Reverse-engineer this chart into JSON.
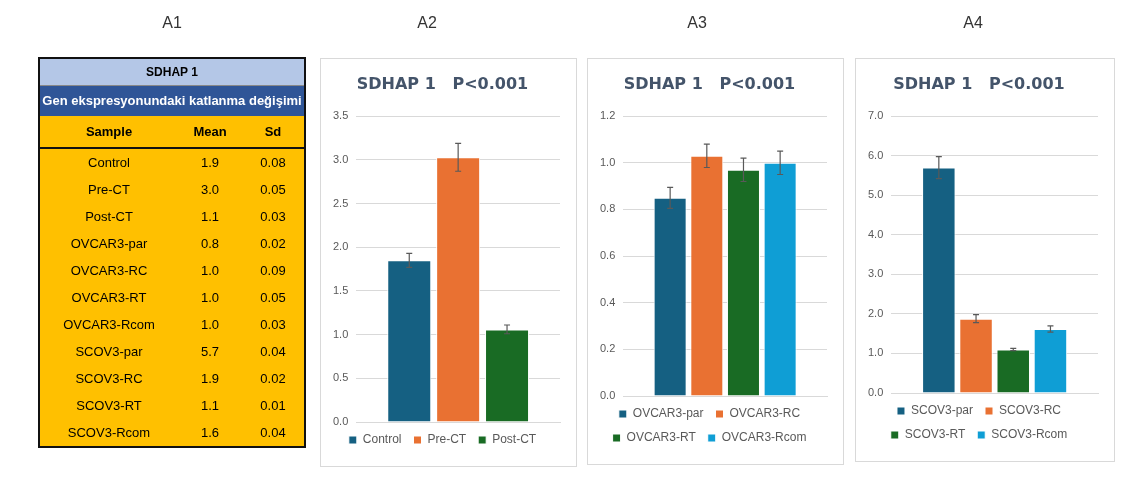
{
  "chart_data": [
    {
      "type": "other",
      "title": "SDHAP 1",
      "subtitle": "Gen ekspresyonundaki katlanma değişimi",
      "annotations": [
        "A1",
        "Sample",
        "Mean",
        "Sd",
        "Control",
        "1.9",
        "0.08",
        "Pre-CT",
        "3.0",
        "0.05",
        "Post-CT",
        "1.1",
        "0.03",
        "OVCAR3-par",
        "0.8",
        "0.02",
        "OVCAR3-RC",
        "1.0",
        "0.09",
        "OVCAR3-RT",
        "1.0",
        "0.05",
        "OVCAR3-Rcom",
        "1.0",
        "0.03",
        "SCOV3-par",
        "5.7",
        "0.04",
        "SCOV3-RC",
        "1.9",
        "0.02",
        "SCOV3-RT",
        "1.1",
        "0.01",
        "SCOV3-Rcom",
        "1.6",
        "0.04"
      ]
    },
    {
      "type": "bar",
      "title": "SDHAP 1   P<0.001",
      "annotations": [
        "A2"
      ],
      "categories": [
        null
      ],
      "grid": "y",
      "legend": "bottom",
      "ylim": [
        0,
        3.5
      ],
      "yticks": [
        {
          "value": 0,
          "label": "0.0"
        },
        {
          "value": 0.5,
          "label": "0.5"
        },
        {
          "value": 1,
          "label": "1.0"
        },
        {
          "value": 1.5,
          "label": "1.5"
        },
        {
          "value": 2,
          "label": "2.0"
        },
        {
          "value": 2.5,
          "label": "2.5"
        },
        {
          "value": 3,
          "label": "3.0"
        },
        {
          "value": 3.5,
          "label": "3.5"
        }
      ],
      "series": [
        {
          "name": "Control",
          "color": "#156082",
          "values": [
            1.85
          ],
          "errors": [
            0.08
          ]
        },
        {
          "name": "Pre-CT",
          "color": "#e97132",
          "values": [
            3.03
          ],
          "errors": [
            0.16
          ]
        },
        {
          "name": "Post-CT",
          "color": "#196b24",
          "values": [
            1.06
          ],
          "errors": [
            0.05
          ]
        }
      ]
    },
    {
      "type": "bar",
      "title": "SDHAP 1   P<0.001",
      "annotations": [
        "A3"
      ],
      "categories": [
        null
      ],
      "grid": "y",
      "legend": "bottom",
      "ylim": [
        0,
        1.2
      ],
      "yticks": [
        {
          "value": 0,
          "label": "0.0"
        },
        0.2,
        0.4,
        0.6,
        0.8,
        {
          "value": 1,
          "label": "1.0"
        },
        1.2
      ],
      "series": [
        {
          "name": "OVCAR3-par",
          "color": "#156082",
          "values": [
            0.85
          ],
          "errors": [
            0.045
          ]
        },
        {
          "name": "OVCAR3-RC",
          "color": "#e97132",
          "values": [
            1.03
          ],
          "errors": [
            0.05
          ]
        },
        {
          "name": "OVCAR3-RT",
          "color": "#196b24",
          "values": [
            0.97
          ],
          "errors": [
            0.05
          ]
        },
        {
          "name": "OVCAR3-Rcom",
          "color": "#0f9ed5",
          "values": [
            1.0
          ],
          "errors": [
            0.05
          ]
        }
      ]
    },
    {
      "type": "bar",
      "title": "SDHAP 1   P<0.001",
      "annotations": [
        "A4"
      ],
      "categories": [
        null
      ],
      "grid": "y",
      "legend": "bottom",
      "ylim": [
        0,
        7
      ],
      "yticks": [
        {
          "value": 0,
          "label": "0.0"
        },
        {
          "value": 1,
          "label": "1.0"
        },
        {
          "value": 2,
          "label": "2.0"
        },
        {
          "value": 3,
          "label": "3.0"
        },
        {
          "value": 4,
          "label": "4.0"
        },
        {
          "value": 5,
          "label": "5.0"
        },
        {
          "value": 6,
          "label": "6.0"
        },
        {
          "value": 7,
          "label": "7.0"
        }
      ],
      "series": [
        {
          "name": "SCOV3-par",
          "color": "#156082",
          "values": [
            5.7
          ],
          "errors": [
            0.28
          ]
        },
        {
          "name": "SCOV3-RC",
          "color": "#e97132",
          "values": [
            1.88
          ],
          "errors": [
            0.1
          ]
        },
        {
          "name": "SCOV3-RT",
          "color": "#196b24",
          "values": [
            1.1
          ],
          "errors": [
            0.03
          ]
        },
        {
          "name": "SCOV3-Rcom",
          "color": "#0f9ed5",
          "values": [
            1.62
          ],
          "errors": [
            0.08
          ]
        }
      ]
    }
  ]
}
